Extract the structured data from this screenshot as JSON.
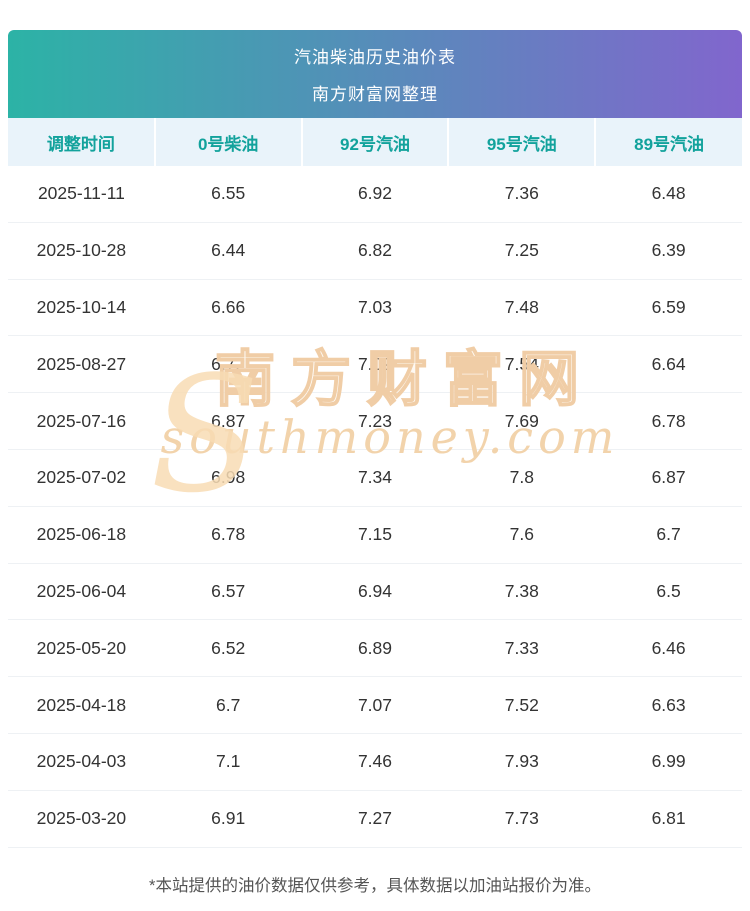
{
  "chart_data": {
    "type": "table",
    "title": "汽油柴油历史油价表",
    "subtitle": "南方财富网整理",
    "columns": [
      "调整时间",
      "0号柴油",
      "92号汽油",
      "95号汽油",
      "89号汽油"
    ],
    "rows": [
      {
        "date": "2025-11-11",
        "values": [
          "6.55",
          "6.92",
          "7.36",
          "6.48"
        ]
      },
      {
        "date": "2025-10-28",
        "values": [
          "6.44",
          "6.82",
          "7.25",
          "6.39"
        ]
      },
      {
        "date": "2025-10-14",
        "values": [
          "6.66",
          "7.03",
          "7.48",
          "6.59"
        ]
      },
      {
        "date": "2025-08-27",
        "values": [
          "6.72",
          "7.09",
          "7.54",
          "6.64"
        ]
      },
      {
        "date": "2025-07-16",
        "values": [
          "6.87",
          "7.23",
          "7.69",
          "6.78"
        ]
      },
      {
        "date": "2025-07-02",
        "values": [
          "6.98",
          "7.34",
          "7.8",
          "6.87"
        ]
      },
      {
        "date": "2025-06-18",
        "values": [
          "6.78",
          "7.15",
          "7.6",
          "6.7"
        ]
      },
      {
        "date": "2025-06-04",
        "values": [
          "6.57",
          "6.94",
          "7.38",
          "6.5"
        ]
      },
      {
        "date": "2025-05-20",
        "values": [
          "6.52",
          "6.89",
          "7.33",
          "6.46"
        ]
      },
      {
        "date": "2025-04-18",
        "values": [
          "6.7",
          "7.07",
          "7.52",
          "6.63"
        ]
      },
      {
        "date": "2025-04-03",
        "values": [
          "7.1",
          "7.46",
          "7.93",
          "6.99"
        ]
      },
      {
        "date": "2025-03-20",
        "values": [
          "6.91",
          "7.27",
          "7.73",
          "6.81"
        ]
      }
    ]
  },
  "watermark": {
    "logo": "S",
    "text_cn": "南方财富网",
    "text_en": "southmoney.com"
  },
  "footer": {
    "note": "*本站提供的油价数据仅供参考，具体数据以加油站报价为准。"
  },
  "colors": {
    "gradient_start": "#2cb3a6",
    "gradient_end": "#8166cd",
    "header_row_bg": "#e9f3fa",
    "header_text": "#12a29c",
    "watermark": "#f2d3ab"
  }
}
